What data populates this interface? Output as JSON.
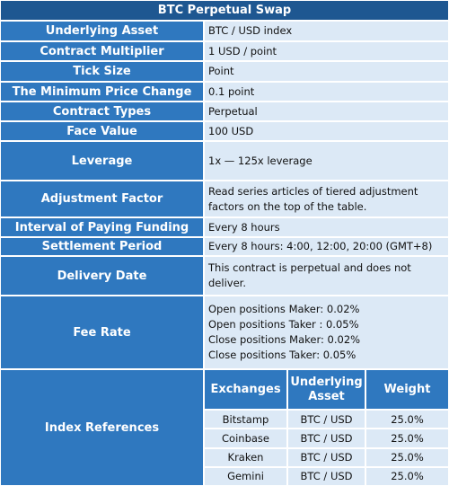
{
  "header": {
    "title": "BTC Perpetual Swap"
  },
  "rows": [
    {
      "label": "Underlying Asset",
      "value": "BTC / USD index"
    },
    {
      "label": "Contract Multiplier",
      "value": "1 USD / point"
    },
    {
      "label": "Tick Size",
      "value": "Point"
    },
    {
      "label": "The Minimum Price Change",
      "value": "0.1 point"
    },
    {
      "label": "Contract Types",
      "value": "Perpetual"
    },
    {
      "label": "Face Value",
      "value": "100 USD"
    },
    {
      "label": "Leverage",
      "value": "1x — 125x leverage"
    },
    {
      "label": "Adjustment Factor",
      "value": "Read series articles of tiered adjustment factors on the top of the table."
    },
    {
      "label": "Interval of Paying Funding",
      "value": "Every 8 hours"
    },
    {
      "label": "Settlement Period",
      "value": "Every 8 hours: 4:00, 12:00, 20:00 (GMT+8)"
    },
    {
      "label": "Delivery Date",
      "value": "This contract is perpetual and does not deliver."
    },
    {
      "label": "Fee Rate",
      "value": [
        "Open positions Maker: 0.02%",
        "Open positions Taker : 0.05%",
        "Close positions Maker: 0.02%",
        "Close positions Taker:  0.05%"
      ]
    }
  ],
  "index_references": {
    "label": "Index References",
    "columns": [
      "Exchanges",
      "Underlying Asset",
      "Weight"
    ],
    "rows": [
      [
        "Bitstamp",
        "BTC / USD",
        "25.0%"
      ],
      [
        "Coinbase",
        "BTC / USD",
        "25.0%"
      ],
      [
        "Kraken",
        "BTC / USD",
        "25.0%"
      ],
      [
        "Gemini",
        "BTC / USD",
        "25.0%"
      ]
    ]
  }
}
